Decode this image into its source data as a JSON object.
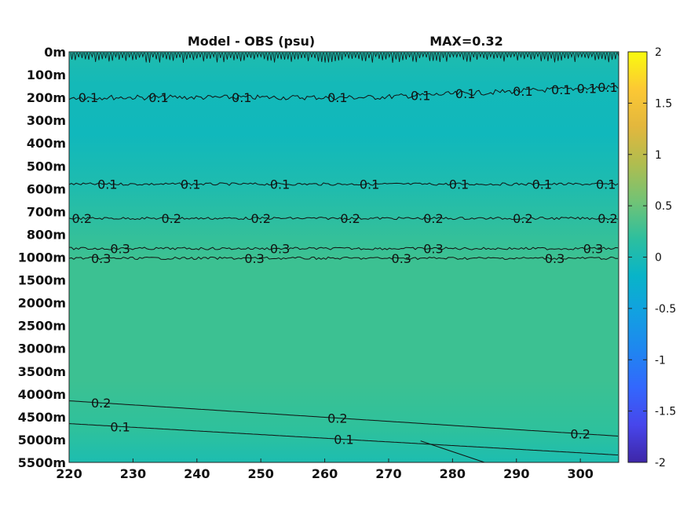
{
  "chart_data": {
    "type": "heatmap",
    "title": "Model - OBS (psu)",
    "max_label": "MAX=0.32",
    "x_ticks": [
      "220",
      "230",
      "240",
      "250",
      "260",
      "270",
      "280",
      "290",
      "300"
    ],
    "x_tick_values": [
      220,
      230,
      240,
      250,
      260,
      270,
      280,
      290,
      300
    ],
    "xlim": [
      220,
      306
    ],
    "y_ticks": [
      "0m",
      "100m",
      "200m",
      "300m",
      "400m",
      "500m",
      "600m",
      "700m",
      "800m",
      "1000m",
      "1500m",
      "2000m",
      "2500m",
      "3000m",
      "3500m",
      "4000m",
      "4500m",
      "5000m",
      "5500m"
    ],
    "colorbar": {
      "range": [
        -2,
        2
      ],
      "ticks": [
        "2",
        "1.5",
        "1",
        "0.5",
        "0",
        "-0.5",
        "-1",
        "-1.5",
        "-2"
      ],
      "tick_values": [
        2,
        1.5,
        1,
        0.5,
        0,
        -0.5,
        -1,
        -1.5,
        -2
      ],
      "colormap": "parula",
      "colors": [
        "#3e26a8",
        "#4746eb",
        "#3367fd",
        "#1f86f0",
        "#12a0e1",
        "#08b4c8",
        "#2dbf9e",
        "#72c375",
        "#b0bd4f",
        "#e3b73d",
        "#fcc834",
        "#f9fb0e"
      ]
    },
    "field_colors": {
      "surface": "#1fbcae",
      "mid": "#26bfa5",
      "deep": "#3cc192",
      "bottom": "#2ec19c"
    },
    "contours": [
      {
        "level": 0.1,
        "label": "0.1",
        "y": 200,
        "labels_at": [
          223,
          234,
          247,
          262,
          275,
          282,
          291,
          297,
          301,
          305
        ]
      },
      {
        "level": 0.1,
        "label": "0.1",
        "y": 580,
        "labels_at": [
          226,
          239,
          253,
          267,
          281,
          294,
          304
        ]
      },
      {
        "level": 0.2,
        "label": "0.2",
        "y": 730,
        "labels_at": [
          222,
          236,
          250,
          264,
          277,
          291,
          306
        ]
      },
      {
        "level": 0.3,
        "label": "0.3",
        "y": 925,
        "labels_at": [
          228,
          253,
          277,
          302
        ]
      },
      {
        "level": 0.3,
        "label": "0.3",
        "y": 1025,
        "labels_at": [
          225,
          249,
          272,
          296
        ]
      },
      {
        "level": 0.2,
        "label": "0.2",
        "y": 4150,
        "labels_at": [
          225,
          262,
          300
        ]
      },
      {
        "level": 0.1,
        "label": "0.1",
        "y": 4650,
        "labels_at": [
          228,
          263
        ]
      }
    ]
  }
}
